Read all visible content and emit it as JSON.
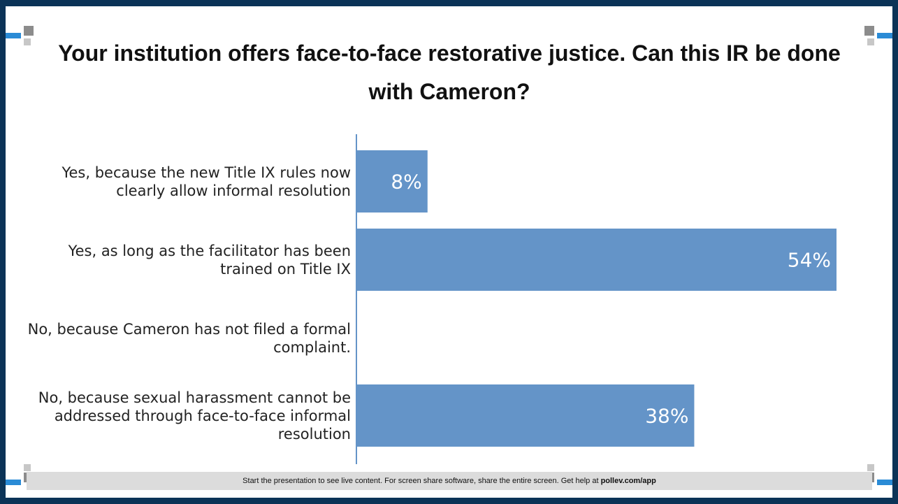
{
  "title": "Your institution offers face-to-face restorative justice. Can this IR be done with Cameron?",
  "chart_data": {
    "type": "bar",
    "orientation": "horizontal",
    "categories": [
      "Yes, because the new Title IX rules now clearly allow informal resolution",
      "Yes, as long as the facilitator has been trained on Title IX",
      "No, because Cameron has not filed a formal complaint.",
      "No, because sexual harassment cannot be addressed through face-to-face informal resolution"
    ],
    "values": [
      8,
      54,
      0,
      38
    ],
    "data_labels": [
      "8%",
      "54%",
      "",
      "38%"
    ],
    "xlim": [
      0,
      54
    ],
    "grid": false,
    "legend": "none",
    "bar_color": "#6494c8",
    "label_color": "#ffffff"
  },
  "footer": {
    "text": "Start the presentation to see live content. For screen share software, share the entire screen. Get help at ",
    "link": "pollev.com/app"
  },
  "colors": {
    "frame": "#0b3357",
    "accent_blue": "#2a8bd6",
    "accent_gray": "#8c8c8c"
  }
}
